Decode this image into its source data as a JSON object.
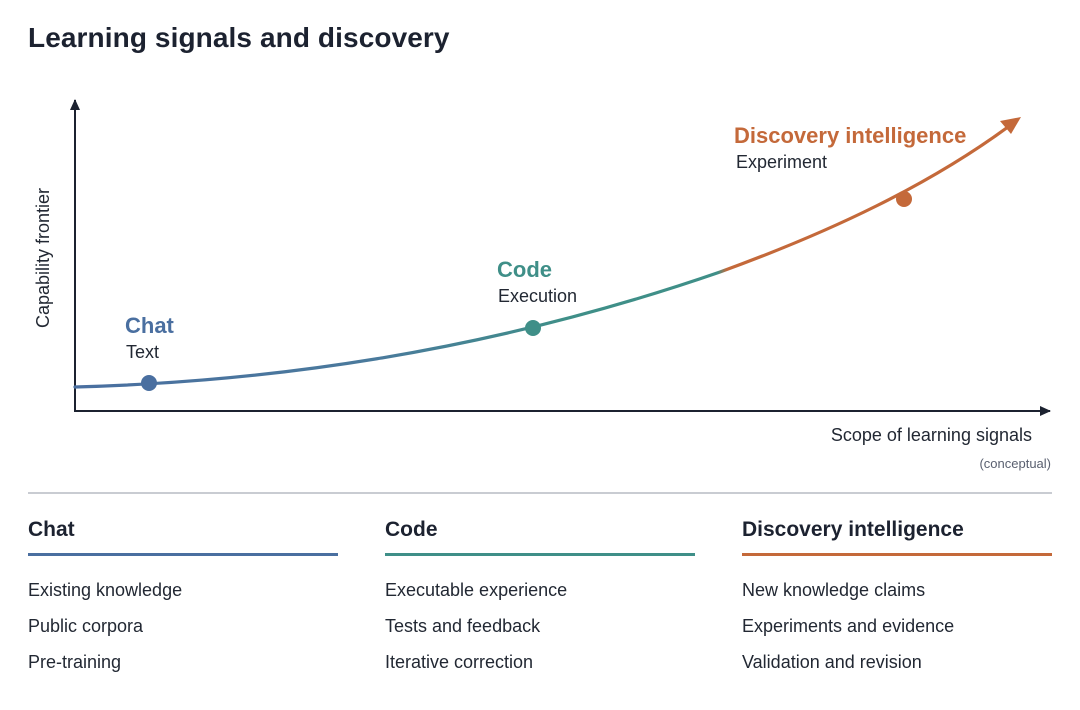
{
  "title": "Learning signals and discovery",
  "colors": {
    "chat": "#4a6fa0",
    "code": "#3f8f88",
    "discovery": "#c4693a",
    "axis": "#1c2230"
  },
  "axes": {
    "y_label": "Capability frontier",
    "x_label": "Scope of learning signals",
    "x_note": "(conceptual)"
  },
  "stages": [
    {
      "name": "Chat",
      "signal": "Text"
    },
    {
      "name": "Code",
      "signal": "Execution"
    },
    {
      "name": "Discovery intelligence",
      "signal": "Experiment"
    }
  ],
  "columns": [
    {
      "heading": "Chat",
      "items": [
        "Existing knowledge",
        "Public corpora",
        "Pre-training"
      ]
    },
    {
      "heading": "Code",
      "items": [
        "Executable experience",
        "Tests and feedback",
        "Iterative correction"
      ]
    },
    {
      "heading": "Discovery intelligence",
      "items": [
        "New knowledge claims",
        "Experiments and evidence",
        "Validation and revision"
      ]
    }
  ]
}
